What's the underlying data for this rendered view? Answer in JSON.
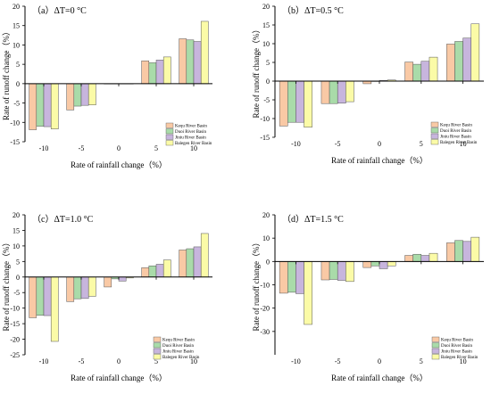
{
  "colors": {
    "series": [
      "#f9c9a5",
      "#a9dba9",
      "#c7b5dd",
      "#fbfba7"
    ],
    "stroke": "#555555",
    "axis": "#000000"
  },
  "chart_data": [
    {
      "type": "bar",
      "title": "（a）ΔT=0 °C",
      "xlabel": "Rate of rainfall change（%）",
      "ylabel": "Rate of runoff change（%）",
      "categories": [
        "-10",
        "-5",
        "0",
        "5",
        "10"
      ],
      "ylim": [
        -15,
        20
      ],
      "yticks": [
        -15,
        -10,
        -5,
        0,
        5,
        10,
        15,
        20
      ],
      "grid": false,
      "legend_position": "bottom-right",
      "series": [
        {
          "name": "Kequ River Basin",
          "values": [
            -11.9,
            -6.8,
            0,
            5.9,
            11.6
          ]
        },
        {
          "name": "Duoi River Basin",
          "values": [
            -11.0,
            -5.8,
            0,
            5.4,
            11.3
          ]
        },
        {
          "name": "Jiniu River Basin",
          "values": [
            -11.1,
            -5.6,
            0,
            6.1,
            10.9
          ]
        },
        {
          "name": "Balegen River Basin",
          "values": [
            -11.7,
            -5.5,
            0,
            6.9,
            16.1
          ]
        }
      ]
    },
    {
      "type": "bar",
      "title": "（b）ΔT=0.5 °C",
      "xlabel": "Rate of rainfall change（%）",
      "ylabel": "Rate of runoff change（%）",
      "categories": [
        "-10",
        "-5",
        "0",
        "5",
        "10"
      ],
      "ylim": [
        -15,
        20
      ],
      "yticks": [
        -15,
        -10,
        -5,
        0,
        5,
        10,
        15,
        20
      ],
      "grid": false,
      "legend_position": "bottom-right",
      "series": [
        {
          "name": "Kequ River Basin",
          "values": [
            -12.0,
            -6.0,
            -0.7,
            5.1,
            9.9
          ]
        },
        {
          "name": "Duoi River Basin",
          "values": [
            -11.0,
            -6.0,
            -0.1,
            4.5,
            10.6
          ]
        },
        {
          "name": "Jiniu River Basin",
          "values": [
            -11.0,
            -5.9,
            0.2,
            5.3,
            11.5
          ]
        },
        {
          "name": "Balegen River Basin",
          "values": [
            -12.3,
            -5.5,
            0.3,
            6.4,
            15.3
          ]
        }
      ]
    },
    {
      "type": "bar",
      "title": "（c）ΔT=1.0 °C",
      "xlabel": "Rate of rainfall change（%）",
      "ylabel": "Rate of runoff change（%）",
      "categories": [
        "-10",
        "-5",
        "0",
        "5",
        "10"
      ],
      "ylim": [
        -25,
        20
      ],
      "yticks": [
        -25,
        -20,
        -15,
        -10,
        -5,
        0,
        5,
        10,
        15,
        20
      ],
      "grid": false,
      "legend_position": "bottom-right",
      "series": [
        {
          "name": "Kequ River Basin",
          "values": [
            -13.1,
            -7.9,
            -3.2,
            3.0,
            8.7
          ]
        },
        {
          "name": "Duoi River Basin",
          "values": [
            -12.3,
            -7.0,
            -0.6,
            3.6,
            9.1
          ]
        },
        {
          "name": "Jiniu River Basin",
          "values": [
            -12.4,
            -6.9,
            -1.3,
            4.1,
            9.7
          ]
        },
        {
          "name": "Balegen River Basin",
          "values": [
            -20.7,
            -6.2,
            -0.3,
            5.5,
            14.0
          ]
        }
      ]
    },
    {
      "type": "bar",
      "title": "（d）ΔT=1.5 °C",
      "xlabel": "Rate of rainfall change（%）",
      "ylabel": "Rate of runoff change（%）",
      "categories": [
        "-10",
        "-5",
        "0",
        "5",
        "10"
      ],
      "ylim": [
        -40,
        20
      ],
      "yticks": [
        -30,
        -20,
        -10,
        0,
        10,
        20
      ],
      "grid": false,
      "legend_position": "bottom-right",
      "series": [
        {
          "name": "Kequ River Basin",
          "values": [
            -13.6,
            -7.9,
            -2.6,
            2.6,
            8.0
          ]
        },
        {
          "name": "Duoi River Basin",
          "values": [
            -13.2,
            -7.7,
            -1.9,
            3.1,
            9.0
          ]
        },
        {
          "name": "Jiniu River Basin",
          "values": [
            -13.8,
            -8.1,
            -3.1,
            2.6,
            8.6
          ]
        },
        {
          "name": "Balegen River Basin",
          "values": [
            -27.0,
            -8.6,
            -1.9,
            3.5,
            10.4
          ]
        }
      ]
    }
  ]
}
